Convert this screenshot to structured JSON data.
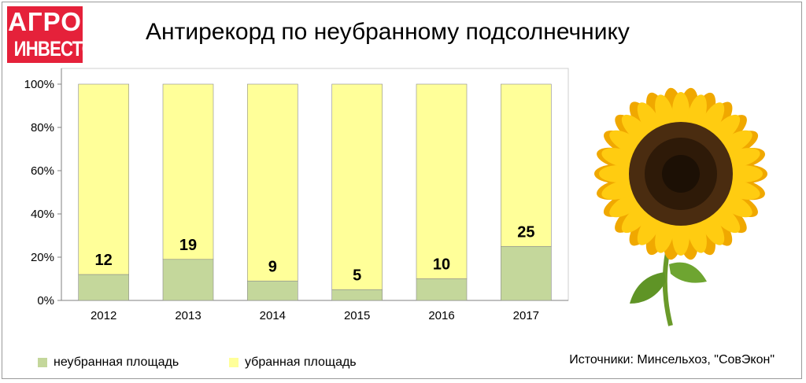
{
  "logo": {
    "line1": "АГРО",
    "line2": "ИНВЕСТОР"
  },
  "title": "Антирекорд по неубранному подсолнечнику",
  "source": "Источники: Минсельхоз, \"СовЭкон\"",
  "chart_data": {
    "type": "bar",
    "stacked": true,
    "categories": [
      "2012",
      "2013",
      "2014",
      "2015",
      "2016",
      "2017"
    ],
    "series": [
      {
        "name": "неубранная площадь",
        "values": [
          12,
          19,
          9,
          5,
          10,
          25
        ],
        "color": "#c4d79b"
      },
      {
        "name": "убранная площадь",
        "values": [
          88,
          81,
          91,
          95,
          90,
          75
        ],
        "color": "#ffff99"
      }
    ],
    "data_labels": [
      "12",
      "19",
      "9",
      "5",
      "10",
      "25"
    ],
    "yticks": [
      "0%",
      "20%",
      "40%",
      "60%",
      "80%",
      "100%"
    ],
    "ylim": [
      0,
      100
    ],
    "grid": false,
    "legend_position": "bottom-left"
  },
  "colors": {
    "logo_bg": "#e5213a",
    "bar_border": "#8c8c8c"
  }
}
